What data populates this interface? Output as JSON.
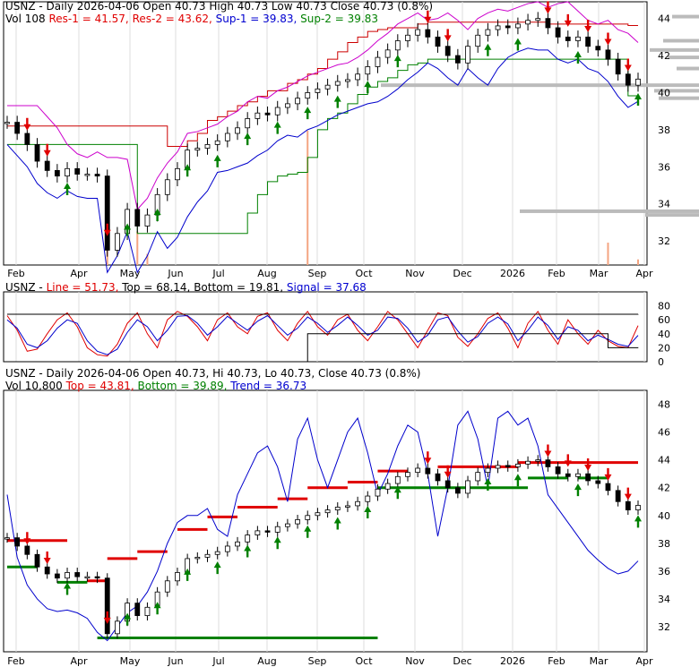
{
  "chart_data": [
    {
      "type": "candlestick",
      "panel": "price-support-resistance",
      "header": {
        "line1_symbol": "USNZ - Daily 2026-04-06 Open 40.73",
        "line1_high": "High 40.73",
        "line1_low": "Low 40.73",
        "line1_close": "Close 40.73 (0.8%)",
        "vol": "Vol 108",
        "res1": "Res-1 = 41.57,",
        "res2": "Res-2 = 43.62,",
        "sup1": "Sup-1 = 39.83,",
        "sup2": "Sup-2 = 39.83"
      },
      "x_tick_labels": [
        "Feb",
        "Apr",
        "May",
        "Jun",
        "Jul",
        "Aug",
        "Sep",
        "Oct",
        "Nov",
        "Dec",
        "2026",
        "Feb",
        "Mar",
        "Apr"
      ],
      "y_tick_labels": [
        "44",
        "42",
        "40",
        "38",
        "36",
        "34",
        "32"
      ],
      "ylim": [
        30.7,
        44.9
      ],
      "close": [
        38.4,
        37.8,
        37.2,
        36.3,
        35.8,
        35.5,
        35.9,
        35.6,
        35.6,
        35.5,
        31.5,
        32.4,
        33.7,
        32.8,
        33.4,
        34.5,
        35.3,
        35.9,
        36.9,
        37.0,
        37.2,
        37.4,
        37.8,
        38.1,
        38.6,
        38.9,
        38.8,
        39.2,
        39.4,
        39.7,
        40.0,
        40.2,
        40.4,
        40.6,
        40.7,
        41.0,
        41.4,
        41.9,
        42.3,
        42.8,
        43.1,
        43.4,
        43.0,
        42.5,
        42.0,
        41.6,
        42.5,
        43.1,
        43.4,
        43.6,
        43.5,
        43.7,
        43.9,
        44.0,
        43.5,
        43.0,
        42.8,
        43.0,
        42.5,
        42.3,
        41.8,
        41.0,
        40.4,
        40.73
      ],
      "resistance": [
        38.2,
        38.2,
        38.2,
        38.2,
        38.2,
        38.2,
        38.2,
        38.2,
        38.2,
        38.2,
        38.2,
        38.2,
        38.2,
        38.2,
        38.2,
        38.2,
        37.1,
        37.1,
        37.4,
        37.8,
        38.5,
        38.7,
        39.0,
        39.3,
        39.5,
        39.8,
        40.1,
        40.1,
        40.5,
        40.7,
        41.0,
        41.3,
        41.8,
        42.2,
        42.7,
        43.0,
        43.3,
        43.4,
        43.5,
        43.5,
        43.5,
        43.7,
        43.8,
        43.8,
        43.8,
        43.8,
        43.8,
        43.8,
        43.8,
        43.8,
        43.8,
        43.8,
        43.8,
        43.8,
        43.7,
        43.7,
        43.7,
        43.7,
        43.7,
        43.7,
        43.7,
        43.7,
        43.62,
        43.62
      ],
      "support": [
        37.2,
        37.2,
        37.2,
        37.2,
        37.2,
        37.2,
        37.2,
        37.2,
        37.2,
        37.2,
        37.2,
        37.2,
        37.2,
        32.4,
        32.4,
        32.4,
        32.4,
        32.4,
        32.4,
        32.4,
        32.4,
        32.4,
        32.4,
        32.4,
        33.5,
        34.5,
        35.2,
        35.5,
        35.6,
        35.7,
        36.5,
        38.0,
        38.6,
        38.9,
        39.4,
        39.9,
        40.3,
        40.6,
        40.8,
        41.2,
        41.5,
        41.6,
        41.8,
        41.8,
        41.8,
        41.8,
        41.8,
        41.8,
        41.8,
        41.8,
        41.8,
        41.8,
        41.8,
        41.8,
        41.8,
        41.8,
        41.8,
        41.8,
        41.8,
        41.8,
        41.8,
        41.8,
        39.83,
        39.83
      ],
      "volume": [
        0,
        0,
        0,
        0,
        0,
        0,
        0,
        0,
        0,
        0,
        6,
        0,
        0,
        12,
        4,
        0,
        0,
        0,
        0,
        0,
        0,
        0,
        0,
        0,
        0,
        0,
        0,
        0,
        0,
        0,
        48,
        0,
        0,
        0,
        0,
        0,
        0,
        0,
        0,
        0,
        0,
        0,
        0,
        0,
        0,
        0,
        0,
        0,
        0,
        0,
        0,
        0,
        0,
        0,
        0,
        0,
        0,
        0,
        0,
        0,
        8,
        0,
        0,
        2
      ]
    },
    {
      "type": "line",
      "panel": "oscillator",
      "header": {
        "symbol": "USNZ -",
        "line": "Line = 51.73,",
        "top": "Top = 68.14,",
        "bottom": "Bottom = 19.81,",
        "signal": "Signal = 37.68"
      },
      "y_tick_labels": [
        "80",
        "60",
        "40",
        "20",
        "0"
      ],
      "ylim": [
        0,
        100
      ],
      "series": [
        {
          "name": "Line",
          "values": [
            66,
            45,
            15,
            18,
            40,
            60,
            70,
            50,
            20,
            10,
            8,
            25,
            55,
            70,
            40,
            20,
            60,
            72,
            65,
            50,
            30,
            60,
            70,
            50,
            40,
            65,
            70,
            45,
            30,
            55,
            72,
            50,
            38,
            60,
            68,
            45,
            30,
            50,
            72,
            60,
            40,
            20,
            45,
            70,
            66,
            35,
            22,
            40,
            62,
            70,
            48,
            20,
            55,
            72,
            45,
            25,
            60,
            40,
            25,
            45,
            30,
            22,
            20,
            51.73
          ]
        },
        {
          "name": "Signal",
          "values": [
            60,
            48,
            25,
            20,
            30,
            48,
            60,
            55,
            30,
            15,
            10,
            18,
            42,
            60,
            50,
            30,
            45,
            65,
            66,
            55,
            38,
            50,
            65,
            55,
            45,
            58,
            66,
            52,
            38,
            48,
            64,
            55,
            42,
            52,
            64,
            52,
            38,
            45,
            64,
            62,
            48,
            28,
            38,
            60,
            64,
            44,
            28,
            36,
            55,
            64,
            54,
            30,
            45,
            64,
            52,
            32,
            50,
            45,
            30,
            38,
            32,
            25,
            22,
            37.68
          ]
        },
        {
          "name": "Top",
          "values": [
            68,
            68,
            68,
            68,
            68,
            68,
            68,
            68,
            68,
            68,
            68,
            68,
            68,
            68,
            68,
            68,
            68,
            68,
            68,
            68,
            68,
            68,
            68,
            68,
            68,
            68,
            68,
            68,
            68,
            68,
            68,
            68,
            68,
            68,
            68,
            68,
            68,
            68,
            68,
            68,
            68,
            68,
            68,
            68,
            68,
            68,
            68,
            68,
            68,
            68,
            68,
            68,
            68,
            68,
            68,
            68,
            68,
            68,
            68,
            68,
            68,
            68,
            68,
            68.14
          ]
        },
        {
          "name": "Bottom",
          "values": [
            0,
            0,
            0,
            0,
            0,
            0,
            0,
            0,
            0,
            0,
            0,
            0,
            0,
            0,
            0,
            0,
            0,
            0,
            0,
            0,
            0,
            0,
            0,
            0,
            0,
            0,
            0,
            0,
            0,
            0,
            40,
            40,
            40,
            40,
            40,
            40,
            40,
            40,
            40,
            40,
            40,
            40,
            40,
            40,
            40,
            40,
            40,
            40,
            40,
            40,
            40,
            40,
            40,
            40,
            40,
            40,
            40,
            40,
            40,
            40,
            20,
            20,
            20,
            19.81
          ]
        }
      ]
    },
    {
      "type": "candlestick",
      "panel": "price-trend",
      "header": {
        "line1_symbol": "USNZ - Daily 2026-04-06 Open 40.73,",
        "line1_hi": "Hi 40.73,",
        "line1_lo": "Lo 40.73,",
        "line1_close": "Close 40.73 (0.8%)",
        "vol": "Vol 10,800",
        "top": "Top = 43.81,",
        "bottom": "Bottom = 39.89,",
        "trend": "Trend = 36.73"
      },
      "y_tick_labels": [
        "48",
        "46",
        "44",
        "42",
        "40",
        "38",
        "36",
        "34",
        "32"
      ],
      "ylim": [
        30.2,
        49.0
      ],
      "trend": [
        41.5,
        37.0,
        35.0,
        34.0,
        33.3,
        33.1,
        33.2,
        33.0,
        32.6,
        31.6,
        31.0,
        32.0,
        33.0,
        33.5,
        34.5,
        36.0,
        38.0,
        39.5,
        40.0,
        40.0,
        40.5,
        39.0,
        38.5,
        41.5,
        43.0,
        44.5,
        45.0,
        43.5,
        41.0,
        45.5,
        47.0,
        44.0,
        42.0,
        44.0,
        46.0,
        47.0,
        44.5,
        41.5,
        43.0,
        45.0,
        46.5,
        46.0,
        43.0,
        38.5,
        42.0,
        46.5,
        47.5,
        45.5,
        42.0,
        47.0,
        47.5,
        46.5,
        47.0,
        45.0,
        41.5,
        40.5,
        39.5,
        38.5,
        37.5,
        36.8,
        36.2,
        35.8,
        36.0,
        36.73
      ]
    }
  ]
}
